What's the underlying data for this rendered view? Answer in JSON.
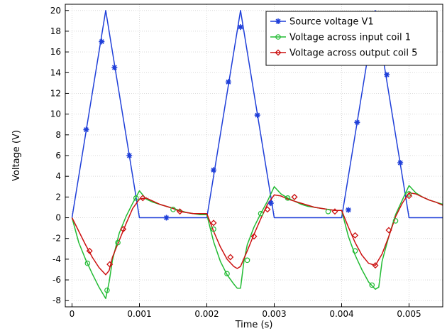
{
  "chart_data": {
    "type": "line",
    "xlabel": "Time (s)",
    "ylabel": "Voltage (V)",
    "xlim": [
      -0.0001,
      0.0055
    ],
    "ylim": [
      -8.6,
      20.6
    ],
    "x_ticks": [
      0,
      0.001,
      0.002,
      0.003,
      0.004,
      0.005
    ],
    "x_tick_labels": [
      "0",
      "0.001",
      "0.002",
      "0.003",
      "0.004",
      "0.005"
    ],
    "y_ticks": [
      -8,
      -6,
      -4,
      -2,
      0,
      2,
      4,
      6,
      8,
      10,
      12,
      14,
      16,
      18,
      20
    ],
    "y_tick_labels": [
      "-8",
      "-6",
      "-4",
      "-2",
      "0",
      "2",
      "4",
      "6",
      "8",
      "10",
      "12",
      "14",
      "16",
      "18",
      "20"
    ],
    "grid": true,
    "legend_position": "top-right",
    "series": [
      {
        "name": "Source voltage V1",
        "color": "#1f3fd9",
        "marker": "asterisk",
        "x": [
          0,
          0.0005,
          0.001,
          0.002,
          0.0025,
          0.003,
          0.004,
          0.0045,
          0.005,
          0.0055
        ],
        "y": [
          0,
          20,
          0,
          0,
          20,
          0,
          0,
          20,
          0,
          0
        ],
        "marker_x": [
          0.00021,
          0.00044,
          0.00063,
          0.00085,
          0.0014,
          0.0021,
          0.00232,
          0.0025,
          0.00275,
          0.00295,
          0.0041,
          0.00423,
          0.00467,
          0.00487
        ],
        "marker_y": [
          8.5,
          17,
          14.5,
          6,
          0,
          4.6,
          13.1,
          18.4,
          9.9,
          1.4,
          0.75,
          9.2,
          13.8,
          5.3
        ]
      },
      {
        "name": "Voltage across input coil 1",
        "color": "#22bb33",
        "marker": "circle",
        "x": [
          0,
          0.0001,
          0.0002,
          0.0003,
          0.0004,
          0.0005,
          0.00055,
          0.0006,
          0.0007,
          0.0008,
          0.0009,
          0.00095,
          0.001,
          0.0011,
          0.0012,
          0.0013,
          0.0014,
          0.0015,
          0.0016,
          0.0017,
          0.0018,
          0.0019,
          0.002,
          0.0021,
          0.0022,
          0.0023,
          0.0024,
          0.00245,
          0.0025,
          0.00255,
          0.0026,
          0.0027,
          0.0028,
          0.0029,
          0.003,
          0.0031,
          0.0032,
          0.0033,
          0.0034,
          0.0035,
          0.0036,
          0.0037,
          0.0038,
          0.0039,
          0.004,
          0.0041,
          0.0042,
          0.0043,
          0.0044,
          0.0045,
          0.00455,
          0.0046,
          0.0047,
          0.0048,
          0.0049,
          0.005,
          0.0051,
          0.0052,
          0.0053,
          0.0054,
          0.0055
        ],
        "y": [
          0,
          -2.4,
          -4,
          -5.4,
          -6.7,
          -7.8,
          -6.2,
          -4.1,
          -1.5,
          0.1,
          1.4,
          2.0,
          2.6,
          1.8,
          1.5,
          1.3,
          1.1,
          0.9,
          0.7,
          0.5,
          0.4,
          0.3,
          0.3,
          -2.3,
          -4.2,
          -5.5,
          -6.4,
          -6.8,
          -6.8,
          -4.2,
          -2.6,
          -0.9,
          0.4,
          1.6,
          3.0,
          2.3,
          1.9,
          1.6,
          1.3,
          1.1,
          1.0,
          0.9,
          0.8,
          0.7,
          0.7,
          -1.8,
          -3.6,
          -5.0,
          -6.2,
          -6.9,
          -6.7,
          -4.2,
          -1.8,
          0.3,
          1.7,
          3.1,
          2.4,
          2.0,
          1.7,
          1.5,
          1.3
        ],
        "marker_x": [
          0.00023,
          0.00052,
          0.00068,
          0.00095,
          0.0015,
          0.0021,
          0.0023,
          0.0026,
          0.0028,
          0.0032,
          0.0038,
          0.0042,
          0.00445,
          0.0048,
          0.005
        ],
        "marker_y": [
          -4.4,
          -7,
          -2.4,
          1.9,
          0.8,
          -1.1,
          -5.4,
          -4.1,
          0.4,
          1.9,
          0.6,
          -3.2,
          -6.5,
          -0.3,
          2.3
        ]
      },
      {
        "name": "Voltage across output coil 5",
        "color": "#cc1111",
        "marker": "diamond",
        "x": [
          0,
          0.0001,
          0.0002,
          0.0003,
          0.0004,
          0.0005,
          0.00055,
          0.0006,
          0.0007,
          0.0008,
          0.0009,
          0.001,
          0.0011,
          0.0012,
          0.0013,
          0.0014,
          0.0015,
          0.0016,
          0.0017,
          0.0018,
          0.0019,
          0.002,
          0.0021,
          0.0022,
          0.0023,
          0.0024,
          0.00245,
          0.0025,
          0.0026,
          0.0027,
          0.0028,
          0.0029,
          0.003,
          0.0031,
          0.0032,
          0.0033,
          0.0034,
          0.0035,
          0.0036,
          0.0037,
          0.0038,
          0.0039,
          0.004,
          0.0041,
          0.0042,
          0.0043,
          0.0044,
          0.0045,
          0.0046,
          0.0047,
          0.0048,
          0.0049,
          0.005,
          0.0051,
          0.0052,
          0.0053,
          0.0054,
          0.0055
        ],
        "y": [
          0,
          -1.3,
          -2.6,
          -3.8,
          -4.8,
          -5.5,
          -5.1,
          -3.8,
          -2.2,
          -0.6,
          0.9,
          1.8,
          1.9,
          1.6,
          1.3,
          1.1,
          0.9,
          0.6,
          0.5,
          0.4,
          0.4,
          0.4,
          -1.3,
          -2.8,
          -4.0,
          -4.7,
          -4.9,
          -4.7,
          -3.2,
          -1.6,
          -0.1,
          1.3,
          2.2,
          2.1,
          1.8,
          1.6,
          1.4,
          1.2,
          1.0,
          0.9,
          0.8,
          0.7,
          0.7,
          -0.9,
          -2.4,
          -3.6,
          -4.4,
          -4.6,
          -3.5,
          -1.8,
          0.1,
          1.4,
          2.4,
          2.3,
          2.0,
          1.7,
          1.5,
          1.2
        ],
        "marker_x": [
          0.00026,
          0.00056,
          0.00076,
          0.00105,
          0.0016,
          0.0021,
          0.00235,
          0.0027,
          0.0029,
          0.0033,
          0.0039,
          0.0042,
          0.0045,
          0.0047,
          0.005
        ],
        "marker_y": [
          -3.2,
          -4.5,
          -1.1,
          1.9,
          0.6,
          -0.5,
          -3.8,
          -1.8,
          0.8,
          2.0,
          0.6,
          -1.7,
          -4.6,
          -1.2,
          2.1
        ]
      }
    ]
  }
}
